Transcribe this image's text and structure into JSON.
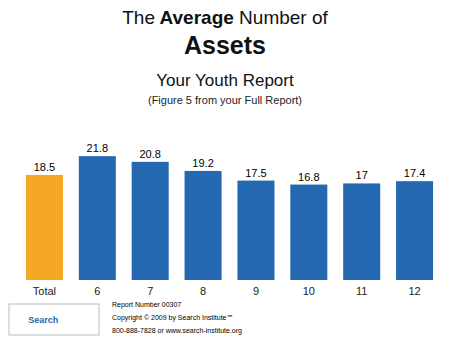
{
  "chart_data": {
    "type": "bar",
    "title": "The Average Number of Assets",
    "subtitle": "Your Youth Report",
    "annotations": [
      "(Figure 5 from your Full Report)",
      "Search",
      "Report Number 00307",
      "Copyright © 2009 by Search Institute℠",
      "800-888-7828 or www.search-institute.org"
    ],
    "categories": [
      "Total",
      "6",
      "7",
      "8",
      "9",
      "10",
      "11",
      "12"
    ],
    "values": [
      18.5,
      21.8,
      20.8,
      19.2,
      17.5,
      16.8,
      17.0,
      17.4
    ],
    "colors": [
      "#F5A823",
      "#2368B0",
      "#2368B0",
      "#2368B0",
      "#2368B0",
      "#2368B0",
      "#2368B0",
      "#2368B0"
    ],
    "ylim": [
      0,
      25
    ],
    "grid": false,
    "data_labels": true,
    "tick_labels": "x"
  }
}
